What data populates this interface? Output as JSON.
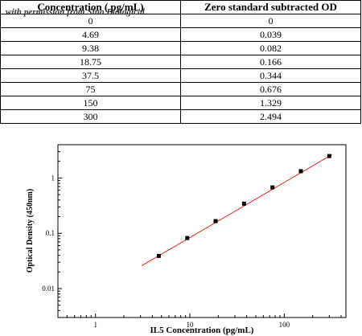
{
  "table": {
    "headers": [
      "Concentration ( pg/mL)",
      "Zero standard subtracted OD"
    ],
    "watermark": "with permission from Sino Biological",
    "rows": [
      [
        "0",
        "0"
      ],
      [
        "4.69",
        "0.039"
      ],
      [
        "9.38",
        "0.082"
      ],
      [
        "18.75",
        "0.166"
      ],
      [
        "37.5",
        "0.344"
      ],
      [
        "75",
        "0.676"
      ],
      [
        "150",
        "1.329"
      ],
      [
        "300",
        "2.494"
      ]
    ]
  },
  "chart_data": {
    "type": "scatter",
    "xlabel": "IL5 Concentration (pg/mL)",
    "ylabel": "Optical Density (450nm)",
    "xscale": "log",
    "yscale": "log",
    "xlim": [
      0.4,
      450
    ],
    "ylim": [
      0.003,
      4
    ],
    "xticks": [
      1,
      10,
      100
    ],
    "xtick_labels": [
      "1",
      "10",
      "100"
    ],
    "yticks": [
      0.01,
      0.1,
      1
    ],
    "ytick_labels": [
      "0.01",
      "0.1",
      "1"
    ],
    "grid": false,
    "legend": "none",
    "point_color": "#000000",
    "fit_color": "#e02020",
    "series": [
      {
        "x": [
          4.69,
          9.38,
          18.75,
          37.5,
          75,
          150,
          300
        ],
        "y": [
          0.039,
          0.082,
          0.166,
          0.344,
          0.676,
          1.329,
          2.494
        ]
      }
    ],
    "fit_line": {
      "x": [
        3.1,
        320
      ],
      "y": [
        0.026,
        2.65
      ]
    }
  }
}
